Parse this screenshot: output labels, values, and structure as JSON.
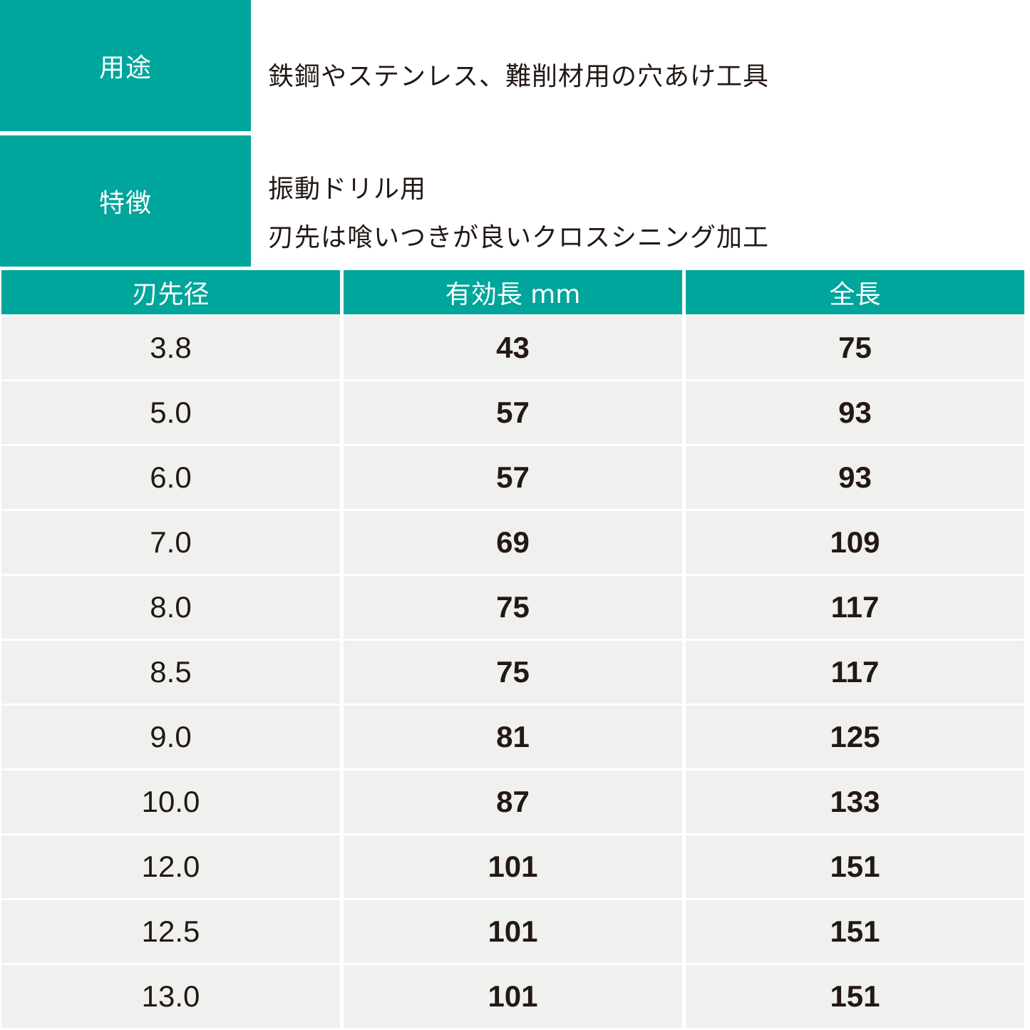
{
  "info": {
    "usage_label": "用途",
    "usage_value": "鉄鋼やステンレス、難削材用の穴あけ工具",
    "features_label": "特徴",
    "features_line1": "振動ドリル用",
    "features_line2": "刃先は喰いつきが良いクロスシニング加工"
  },
  "table": {
    "headers": [
      "刃先径",
      "有効長 mm",
      "全長"
    ],
    "rows": [
      [
        "3.8",
        "43",
        "75"
      ],
      [
        "5.0",
        "57",
        "93"
      ],
      [
        "6.0",
        "57",
        "93"
      ],
      [
        "7.0",
        "69",
        "109"
      ],
      [
        "8.0",
        "75",
        "117"
      ],
      [
        "8.5",
        "75",
        "117"
      ],
      [
        "9.0",
        "81",
        "125"
      ],
      [
        "10.0",
        "87",
        "133"
      ],
      [
        "12.0",
        "101",
        "151"
      ],
      [
        "12.5",
        "101",
        "151"
      ],
      [
        "13.0",
        "101",
        "151"
      ]
    ]
  },
  "colors": {
    "accent": "#00a59b",
    "cell_bg": "#f0f0ee",
    "text": "#231815"
  }
}
